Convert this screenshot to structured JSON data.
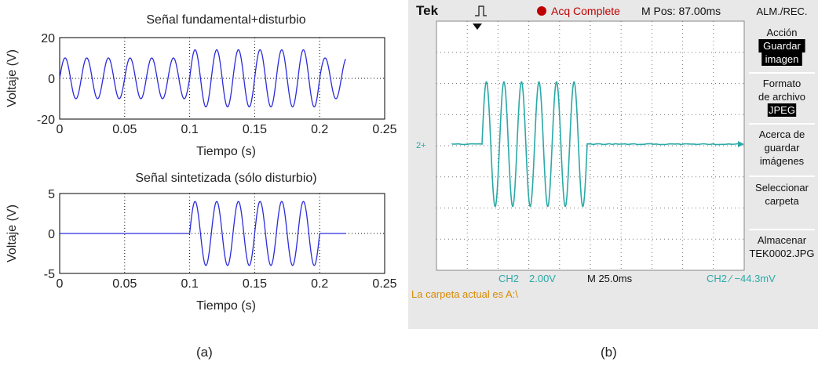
{
  "captions": {
    "a": "(a)",
    "b": "(b)"
  },
  "chart_data": [
    {
      "type": "line",
      "title": "Señal fundamental+disturbio",
      "xlabel": "Tiempo (s)",
      "ylabel": "Voltaje (V)",
      "xlim": [
        0,
        0.25
      ],
      "ylim": [
        -20,
        20
      ],
      "xticks": [
        "0",
        "0.05",
        "0.1",
        "0.15",
        "0.2",
        "0.25"
      ],
      "yticks": [
        "20",
        "0",
        "-20"
      ],
      "grid": "dotted",
      "color": "#2b2bdc",
      "series": [
        {
          "x_start": 0,
          "x_end": 0.22,
          "fundamental_hz": 60,
          "fundamental_amp": 10,
          "disturbance_start": 0.1,
          "disturbance_end": 0.2,
          "disturbance_amp": 4
        }
      ]
    },
    {
      "type": "line",
      "title": "Señal sintetizada (sólo disturbio)",
      "xlabel": "Tiempo (s)",
      "ylabel": "Voltaje (V)",
      "xlim": [
        0,
        0.25
      ],
      "ylim": [
        -5,
        5
      ],
      "xticks": [
        "0",
        "0.05",
        "0.1",
        "0.15",
        "0.2",
        "0.25"
      ],
      "yticks": [
        "5",
        "0",
        "-5"
      ],
      "grid": "dotted",
      "color": "#2b2bdc",
      "series": [
        {
          "x_start": 0,
          "x_end": 0.22,
          "burst_start": 0.1,
          "burst_end": 0.2,
          "burst_hz": 60,
          "burst_amp": 4
        }
      ]
    }
  ],
  "scope": {
    "brand": "Tek",
    "status": "Acq Complete",
    "mpos": "M Pos: 87.00ms",
    "menu_title": "ALM./REC.",
    "menu_items": [
      {
        "lines": [
          "Acción"
        ],
        "highlight": [
          "Guardar",
          "imagen"
        ]
      },
      {
        "lines": [
          "Formato",
          "de archivo"
        ],
        "highlight": [
          "JPEG"
        ]
      },
      {
        "lines": [
          "Acerca de",
          "guardar",
          "imágenes"
        ],
        "highlight": []
      },
      {
        "lines": [
          "Seleccionar",
          "carpeta"
        ],
        "highlight": []
      },
      {
        "lines": [
          "Almacenar",
          "TEK0002.JPG"
        ],
        "highlight": []
      }
    ],
    "ch_label": "CH2",
    "ch_scale": "2.00V",
    "timebase": "M 25.0ms",
    "trigger": "CH2 ⁄ −44.3mV",
    "folder": "La carpeta actual es A:\\",
    "marker": "2+",
    "trace_color": "#2aa9a7",
    "burst_cycles": 6,
    "burst_amplitude_div": 2.0
  }
}
